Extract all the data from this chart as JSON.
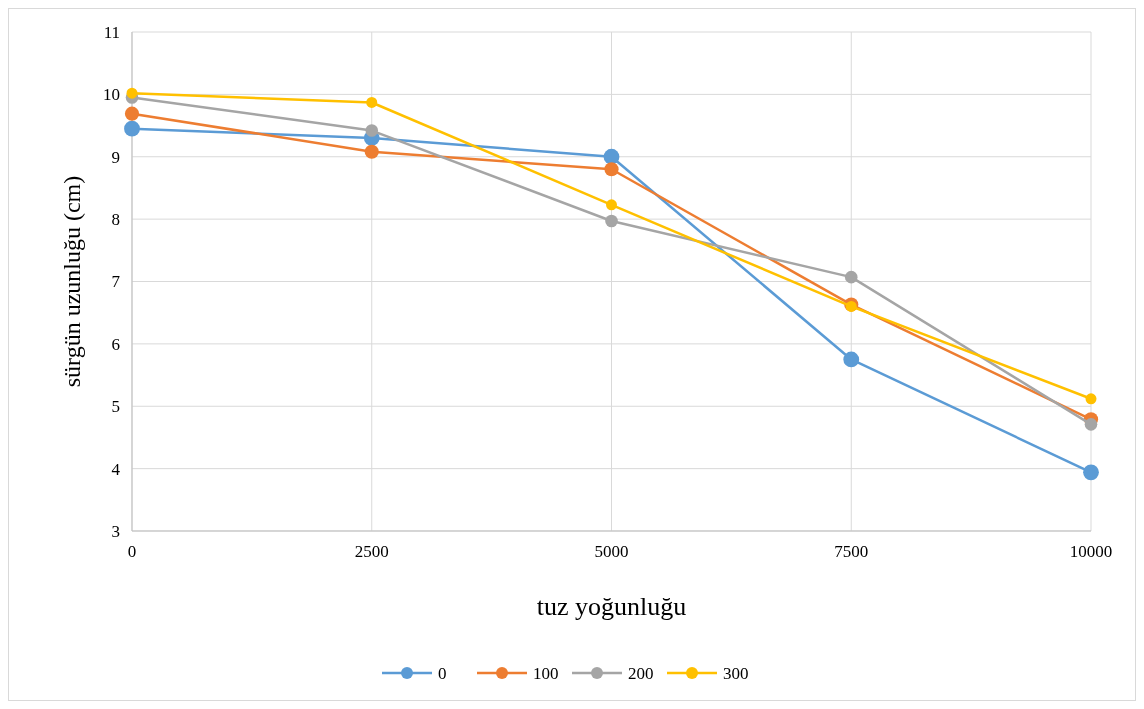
{
  "chart_data": {
    "type": "line",
    "xlabel": "tuz yoğunluğu",
    "ylabel": "sürgün uzunluğu (cm)",
    "x": [
      0,
      2500,
      5000,
      7500,
      10000
    ],
    "xlim": [
      0,
      10000
    ],
    "xticks": [
      0,
      2500,
      5000,
      7500,
      10000
    ],
    "ylim": [
      3,
      11
    ],
    "yticks": [
      3,
      4,
      5,
      6,
      7,
      8,
      9,
      10,
      11
    ],
    "series": [
      {
        "name": "0",
        "color": "#5b9bd5",
        "values": [
          9.45,
          9.3,
          9.0,
          5.75,
          3.94
        ]
      },
      {
        "name": "100",
        "color": "#ed7d31",
        "values": [
          9.69,
          9.08,
          8.8,
          6.63,
          4.79
        ]
      },
      {
        "name": "200",
        "color": "#a5a5a5",
        "values": [
          9.95,
          9.42,
          7.97,
          7.07,
          4.71
        ]
      },
      {
        "name": "300",
        "color": "#ffc000",
        "values": [
          10.02,
          9.87,
          8.23,
          6.6,
          5.12
        ]
      }
    ],
    "grid": true,
    "legend": "bottom",
    "marker": "circle",
    "line_style": "solid"
  }
}
